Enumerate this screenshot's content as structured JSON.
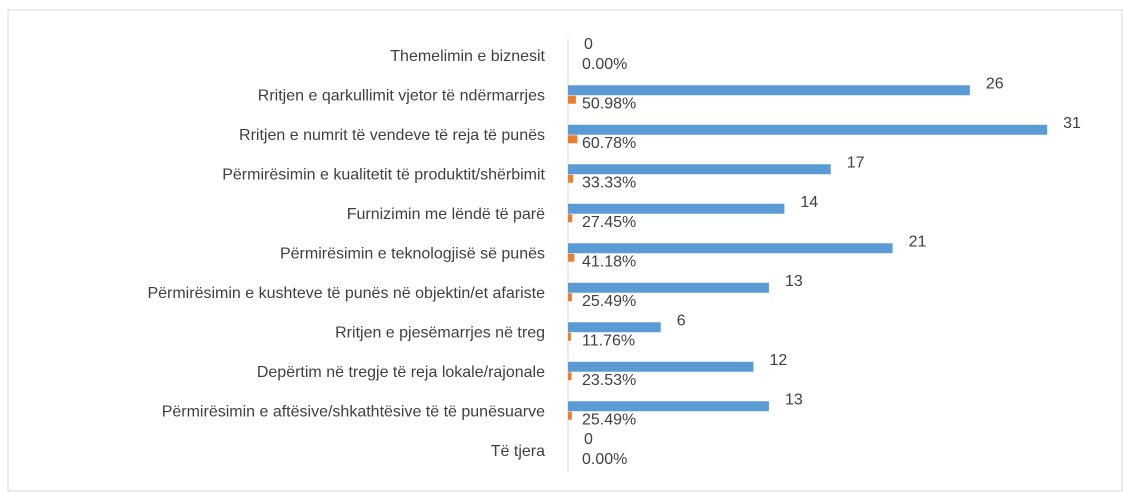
{
  "chart_data": {
    "type": "bar",
    "orientation": "horizontal",
    "categories": [
      "Themelimin e biznesit",
      "Rritjen e qarkullimit vjetor të ndërmarrjes",
      "Rritjen e numrit të vendeve të reja të punës",
      "Përmirësimin e kualitetit të produktit/shërbimit",
      "Furnizimin me lëndë të parë",
      "Përmirësimin e teknologjisë së punës",
      "Përmirësimin e kushteve të punës në objektin/et afariste",
      "Rritjen e pjesëmarrjes në treg",
      "Depërtim në tregje të reja lokale/rajonale",
      "Përmirësimin e aftësive/shkathtësive të të punësuarve",
      "Të tjera"
    ],
    "series": [
      {
        "color": "#5b9bd5",
        "values": [
          0,
          26,
          31,
          17,
          14,
          21,
          13,
          6,
          12,
          13,
          0
        ]
      },
      {
        "color": "#ed7d31",
        "values": [
          0,
          0.5098,
          0.6078,
          0.3333,
          0.2745,
          0.4118,
          0.2549,
          0.1176,
          0.2353,
          0.2549,
          0
        ],
        "value_labels": [
          "0.00%",
          "50.98%",
          "60.78%",
          "33.33%",
          "27.45%",
          "41.18%",
          "25.49%",
          "11.76%",
          "23.53%",
          "25.49%",
          "0.00%"
        ]
      }
    ],
    "xlim": [
      0,
      35
    ]
  }
}
